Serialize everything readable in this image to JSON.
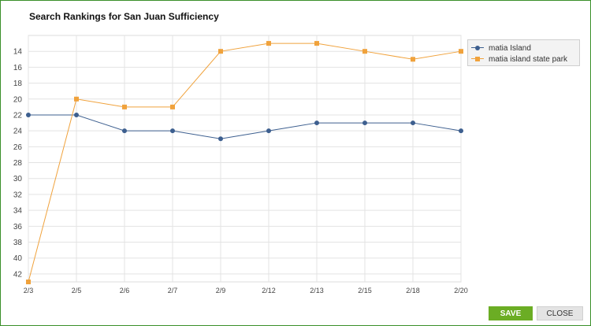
{
  "dialog": {
    "title": "Search Rankings for San Juan Sufficiency",
    "save_label": "SAVE",
    "close_label": "CLOSE"
  },
  "chart_data": {
    "type": "line",
    "title": "Search Rankings for San Juan Sufficiency",
    "xlabel": "",
    "ylabel": "",
    "categories": [
      "2/3",
      "2/5",
      "2/6",
      "2/7",
      "2/9",
      "2/12",
      "2/13",
      "2/15",
      "2/18",
      "2/20"
    ],
    "y_ticks": [
      14,
      16,
      18,
      20,
      22,
      24,
      26,
      28,
      30,
      32,
      34,
      36,
      38,
      40,
      42
    ],
    "ylim": [
      12,
      43
    ],
    "y_inverted": true,
    "grid": true,
    "legend_position": "top-right",
    "series": [
      {
        "name": "matia Island",
        "color": "#3d5f8f",
        "marker": "circle",
        "values": [
          22,
          22,
          24,
          24,
          25,
          24,
          23,
          23,
          23,
          24
        ]
      },
      {
        "name": "matia island state park",
        "color": "#f0a23c",
        "marker": "square",
        "values": [
          43,
          20,
          21,
          21,
          14,
          13,
          13,
          14,
          15,
          14
        ]
      }
    ]
  }
}
